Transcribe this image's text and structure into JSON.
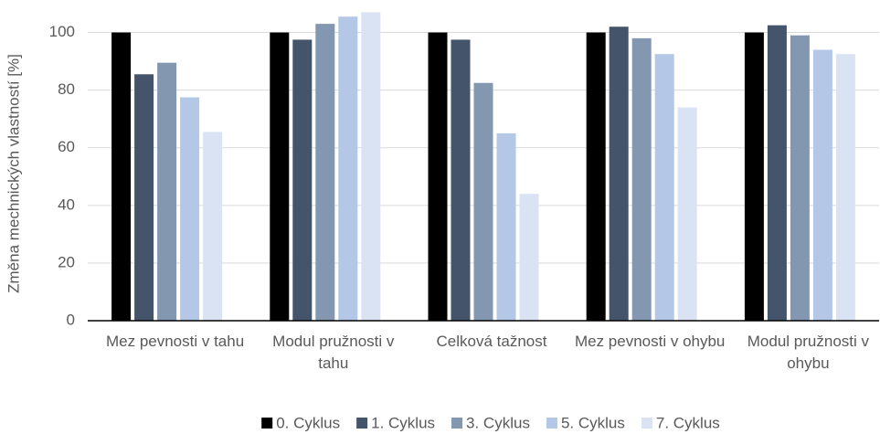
{
  "chart_data": {
    "type": "bar",
    "y_label": "Změna mechnických vlastností [%]",
    "categories": [
      "Mez pevnosti v tahu",
      "Modul pružnosti v tahu",
      "Celková tažnost",
      "Mez pevnosti v ohybu",
      "Modul pružnosti v ohybu"
    ],
    "series": [
      {
        "name": "0. Cyklus",
        "color": "#000000",
        "values": [
          100,
          100,
          100,
          100,
          100
        ]
      },
      {
        "name": "1. Cyklus",
        "color": "#44546a",
        "values": [
          85.5,
          97.5,
          97.5,
          102,
          102.5
        ]
      },
      {
        "name": "3. Cyklus",
        "color": "#8497b0",
        "values": [
          89.5,
          103,
          82.5,
          98,
          99
        ]
      },
      {
        "name": "5. Cyklus",
        "color": "#b4c7e7",
        "values": [
          77.5,
          105.5,
          65,
          92.5,
          94
        ]
      },
      {
        "name": "7. Cyklus",
        "color": "#dae3f3",
        "values": [
          65.5,
          107,
          44,
          74,
          92.5
        ]
      }
    ],
    "ylim": [
      0,
      110
    ],
    "yticks": [
      0,
      20,
      40,
      60,
      80,
      100
    ],
    "grid": true,
    "legend": "bottom"
  }
}
